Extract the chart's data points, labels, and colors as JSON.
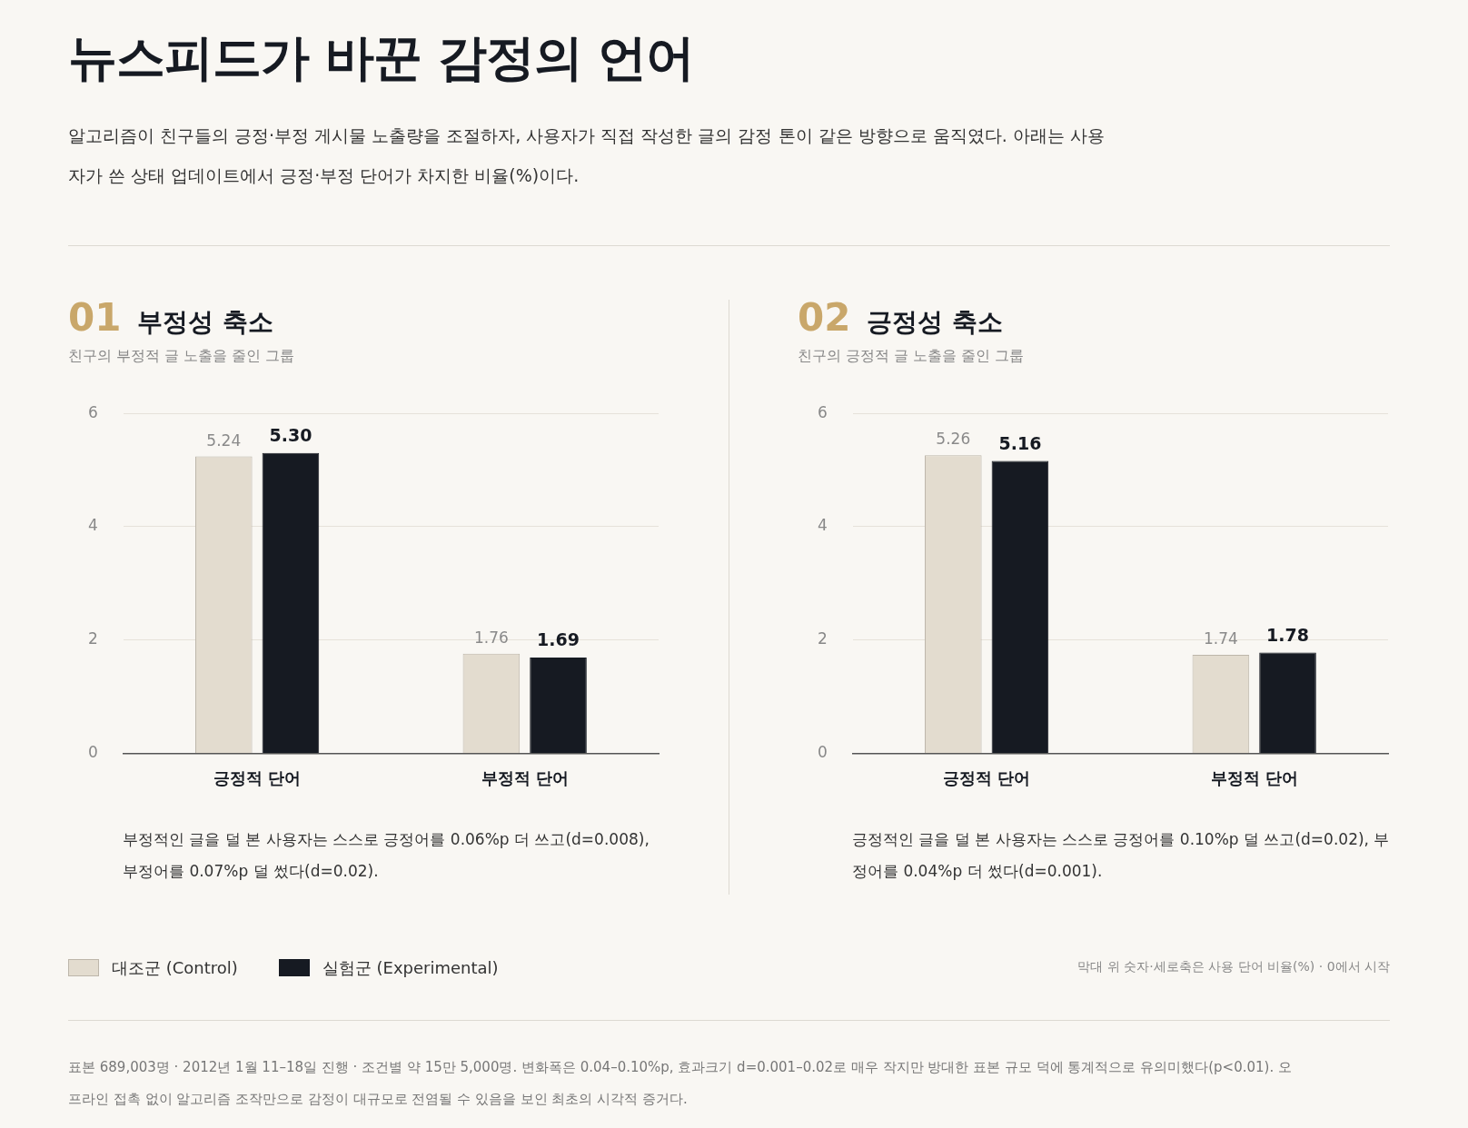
{
  "chart_data": [
    {
      "type": "other",
      "title": "뉴스피드가 바꾼 감정의 언어",
      "subtitle": "알고리즘이 친구들의 긍정·부정 게시물 노출량을 조절하자, 사용자가 직접 작성한 글의 감정 톤이 같은 방향으로 움직였다. 아래는 사용자가 쓴 상태 업데이트에서 긍정·부정 단어가 차지한 비율(%)이다."
    },
    {
      "type": "bar",
      "title": "01 부정성 축소",
      "subtitle": "친구의 부정적 글 노출을 줄인 그룹",
      "categories": [
        "긍정적 단어",
        "부정적 단어"
      ],
      "series": [
        {
          "name": "대조군 (Control)",
          "color": "#e3dccf",
          "values": [
            5.24,
            1.76
          ],
          "value_labels": [
            "5.24",
            "1.76"
          ]
        },
        {
          "name": "실험군 (Experimental)",
          "color": "#161a22",
          "values": [
            5.3,
            1.69
          ],
          "value_labels": [
            "5.30",
            "1.69"
          ]
        }
      ],
      "ylim": [
        0,
        6
      ],
      "yticks": [
        0,
        2,
        4,
        6
      ],
      "grid": "y",
      "legend": "bottom left",
      "annotations": [
        "부정적인 글을 덜 본 사용자는 스스로 긍정어를 0.06%p 더 쓰고(d=0.008), 부정어를 0.07%p 덜 썼다(d=0.02)."
      ]
    },
    {
      "type": "bar",
      "title": "02 긍정성 축소",
      "subtitle": "친구의 긍정적 글 노출을 줄인 그룹",
      "categories": [
        "긍정적 단어",
        "부정적 단어"
      ],
      "series": [
        {
          "color": "#e3dccf",
          "values": [
            5.26,
            1.74
          ],
          "value_labels": [
            "5.26",
            "1.74"
          ]
        },
        {
          "color": "#161a22",
          "values": [
            5.16,
            1.78
          ],
          "value_labels": [
            "5.16",
            "1.78"
          ]
        }
      ],
      "ylim": [
        0,
        6
      ],
      "yticks": [
        0,
        2,
        4,
        6
      ],
      "grid": "y",
      "annotations": [
        "긍정적인 글을 덜 본 사용자는 스스로 긍정어를 0.10%p 덜 쓰고(d=0.02), 부정어를 0.04%p 더 썼다(d=0.001)."
      ]
    },
    {
      "type": "other",
      "annotations": [
        "막대 위 숫자·세로축은 사용 단어 비율(%) · 0에서 시작",
        "표본 689,003명 · 2012년 1월 11–18일 진행 · 조건별 약 15만 5,000명. 변화폭은 0.04–0.10%p, 효과크기 d=0.001–0.02로 매우 작지만 방대한 표본 규모 덕에 통계적으로 유의미했다(p<0.01). 오프라인 접촉 없이 알고리즘 조작만으로 감정이 대규모로 전염될 수 있음을 보인 최초의 시각적 증거다."
      ]
    }
  ]
}
